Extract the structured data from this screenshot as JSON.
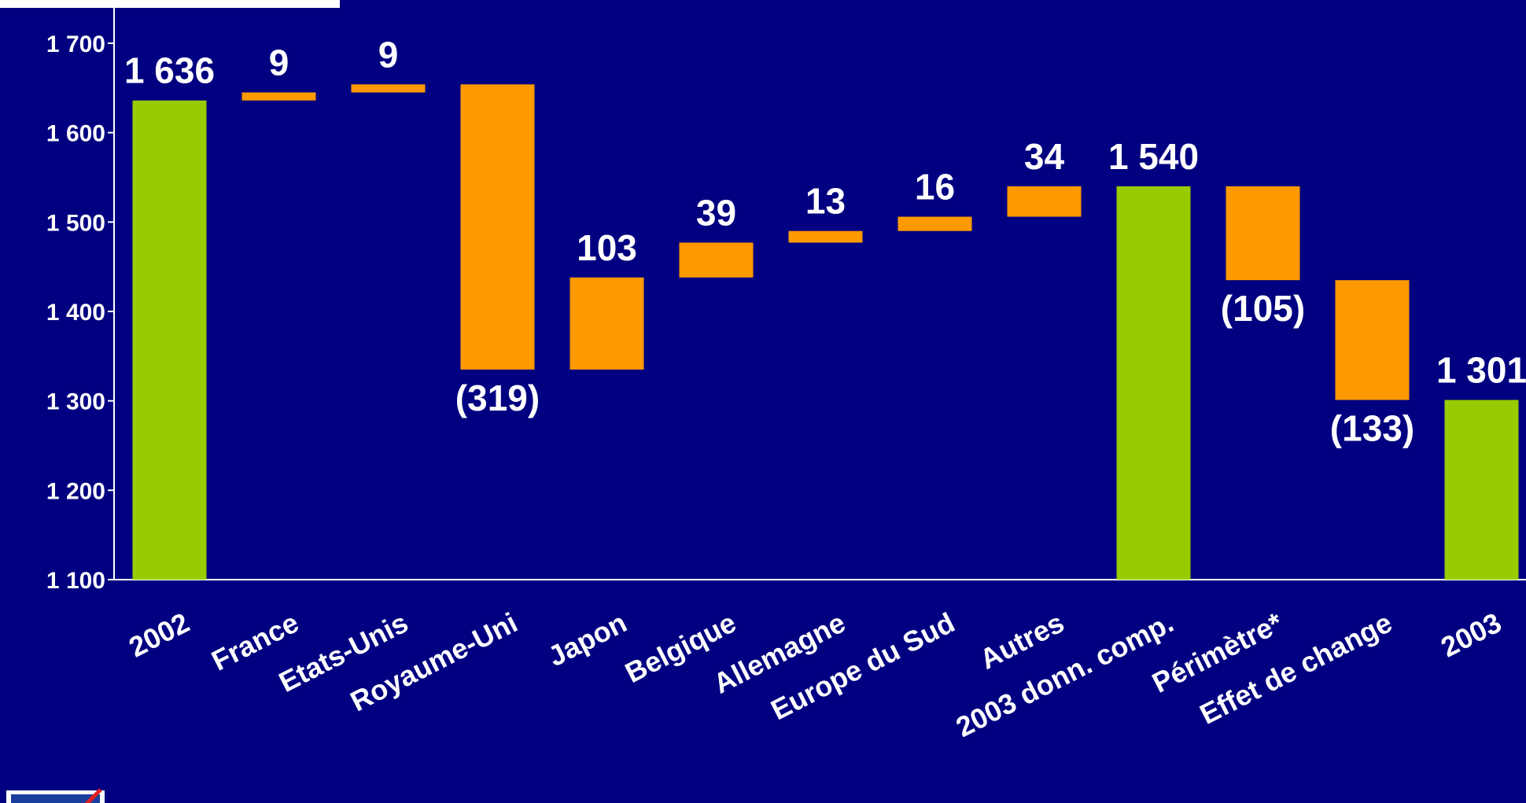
{
  "chart_data": {
    "type": "bar",
    "subtype": "waterfall",
    "ylim": [
      1100,
      1700
    ],
    "yticks": [
      {
        "value": 1100,
        "label": "1 100"
      },
      {
        "value": 1200,
        "label": "1 200"
      },
      {
        "value": 1300,
        "label": "1 300"
      },
      {
        "value": 1400,
        "label": "1 400"
      },
      {
        "value": 1500,
        "label": "1 500"
      },
      {
        "value": 1600,
        "label": "1 600"
      },
      {
        "value": 1700,
        "label": "1 700"
      }
    ],
    "grid": false,
    "colors": {
      "total": "#99CC00",
      "delta": "#FF9900",
      "background": "#000080",
      "text": "#FFFFFF"
    },
    "bars": [
      {
        "category": "2002",
        "kind": "total",
        "start": 1100,
        "end": 1636,
        "label": "1 636"
      },
      {
        "category": "France",
        "kind": "delta",
        "start": 1636,
        "end": 1645,
        "label": "9"
      },
      {
        "category": "Etats-Unis",
        "kind": "delta",
        "start": 1645,
        "end": 1654,
        "label": "9"
      },
      {
        "category": "Royaume-Uni",
        "kind": "delta",
        "start": 1654,
        "end": 1335,
        "label": "(319)"
      },
      {
        "category": "Japon",
        "kind": "delta",
        "start": 1335,
        "end": 1438,
        "label": "103"
      },
      {
        "category": "Belgique",
        "kind": "delta",
        "start": 1438,
        "end": 1477,
        "label": "39"
      },
      {
        "category": "Allemagne",
        "kind": "delta",
        "start": 1477,
        "end": 1490,
        "label": "13"
      },
      {
        "category": "Europe du Sud",
        "kind": "delta",
        "start": 1490,
        "end": 1506,
        "label": "16"
      },
      {
        "category": "Autres",
        "kind": "delta",
        "start": 1506,
        "end": 1540,
        "label": "34"
      },
      {
        "category": "2003 donn. comp.",
        "kind": "total",
        "start": 1100,
        "end": 1540,
        "label": "1 540"
      },
      {
        "category": "Périmètre*",
        "kind": "delta",
        "start": 1540,
        "end": 1435,
        "label": "(105)"
      },
      {
        "category": "Effet de change",
        "kind": "delta",
        "start": 1435,
        "end": 1301,
        "label": "(133)"
      },
      {
        "category": "2003",
        "kind": "total",
        "start": 1100,
        "end": 1301,
        "label": "1 301"
      }
    ]
  }
}
